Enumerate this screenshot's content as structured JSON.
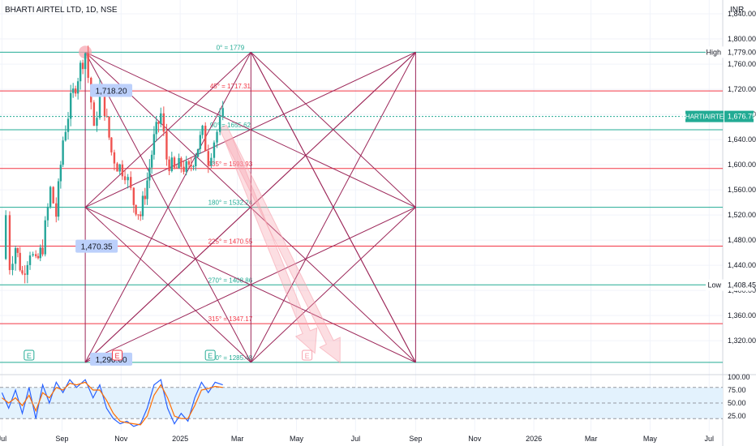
{
  "header": {
    "title": "BHARTI AIRTEL LTD, 1D, NSE",
    "currency": "INR"
  },
  "colors": {
    "up": "#26a69a",
    "down": "#ef5350",
    "fib_teal": "#22ab94",
    "fib_red": "#f23645",
    "gann": "#9c2759",
    "callout_bg": "#bcd0fb",
    "stoch_k": "#2962ff",
    "stoch_d": "#ff6d00",
    "band": "#e3f2fd",
    "arrow": "#f7a1ad",
    "price_tag": "#22ab94"
  },
  "chart_data": [
    {
      "type": "candlestick",
      "title": "BHARTI AIRTEL LTD, 1D, NSE",
      "ylim": [
        1266,
        1862
      ],
      "y_ticks": [
        {
          "v": 1320,
          "label": "1,320.00"
        },
        {
          "v": 1360,
          "label": "1,360.00"
        },
        {
          "v": 1400,
          "label": "1,400.00"
        },
        {
          "v": 1440,
          "label": "1,440.00"
        },
        {
          "v": 1480,
          "label": "1,480.00"
        },
        {
          "v": 1520,
          "label": "1,520.00"
        },
        {
          "v": 1560,
          "label": "1,560.00"
        },
        {
          "v": 1600,
          "label": "1,600.00"
        },
        {
          "v": 1640,
          "label": "1,640.00"
        },
        {
          "v": 1680,
          "label": "1,680.00"
        },
        {
          "v": 1720,
          "label": "1,720.00"
        },
        {
          "v": 1760,
          "label": "1,760.00"
        },
        {
          "v": 1800,
          "label": "1,800.00"
        },
        {
          "v": 1840,
          "label": "1,840.00"
        }
      ],
      "x_ticks": [
        {
          "date": "2024-07-01",
          "label": "Jul"
        },
        {
          "date": "2024-09-01",
          "label": "Sep"
        },
        {
          "date": "2024-11-01",
          "label": "Nov"
        },
        {
          "date": "2025-01-01",
          "label": "2025"
        },
        {
          "date": "2025-03-01",
          "label": "Mar"
        },
        {
          "date": "2025-05-01",
          "label": "May"
        },
        {
          "date": "2025-07-01",
          "label": "Jul"
        },
        {
          "date": "2025-09-01",
          "label": "Sep"
        },
        {
          "date": "2025-11-01",
          "label": "Nov"
        },
        {
          "date": "2026-01-01",
          "label": "2026"
        },
        {
          "date": "2026-03-01",
          "label": "Mar"
        },
        {
          "date": "2026-05-01",
          "label": "May"
        },
        {
          "date": "2026-07-01",
          "label": "Jul"
        }
      ],
      "price_path": [
        {
          "date": "2024-07-01",
          "close": 1450
        },
        {
          "date": "2024-07-05",
          "close": 1520
        },
        {
          "date": "2024-07-09",
          "close": 1440
        },
        {
          "date": "2024-07-15",
          "close": 1470
        },
        {
          "date": "2024-07-22",
          "close": 1425
        },
        {
          "date": "2024-07-30",
          "close": 1465
        },
        {
          "date": "2024-08-05",
          "close": 1440
        },
        {
          "date": "2024-08-12",
          "close": 1470
        },
        {
          "date": "2024-08-20",
          "close": 1560
        },
        {
          "date": "2024-08-26",
          "close": 1520
        },
        {
          "date": "2024-09-02",
          "close": 1640
        },
        {
          "date": "2024-09-10",
          "close": 1700
        },
        {
          "date": "2024-09-20",
          "close": 1755
        },
        {
          "date": "2024-09-25",
          "close": 1779
        },
        {
          "date": "2024-10-01",
          "close": 1700
        },
        {
          "date": "2024-10-04",
          "close": 1650
        },
        {
          "date": "2024-10-10",
          "close": 1720
        },
        {
          "date": "2024-10-15",
          "close": 1690
        },
        {
          "date": "2024-10-22",
          "close": 1620
        },
        {
          "date": "2024-10-28",
          "close": 1600
        },
        {
          "date": "2024-11-05",
          "close": 1590
        },
        {
          "date": "2024-11-14",
          "close": 1540
        },
        {
          "date": "2024-11-21",
          "close": 1520
        },
        {
          "date": "2024-11-28",
          "close": 1575
        },
        {
          "date": "2024-12-05",
          "close": 1640
        },
        {
          "date": "2024-12-12",
          "close": 1680
        },
        {
          "date": "2024-12-18",
          "close": 1610
        },
        {
          "date": "2024-12-26",
          "close": 1590
        },
        {
          "date": "2025-01-02",
          "close": 1600
        },
        {
          "date": "2025-01-10",
          "close": 1590
        },
        {
          "date": "2025-01-17",
          "close": 1620
        },
        {
          "date": "2025-01-24",
          "close": 1650
        },
        {
          "date": "2025-01-30",
          "close": 1610
        },
        {
          "date": "2025-02-05",
          "close": 1640
        },
        {
          "date": "2025-02-11",
          "close": 1665
        },
        {
          "date": "2025-02-14",
          "close": 1676.75
        }
      ],
      "last_price": {
        "label": "BHARTIAIRTEL",
        "value": 1676.75,
        "text": "1,676.75"
      },
      "high": {
        "label": "High",
        "value": 1779,
        "text": "1,779.00"
      },
      "low": {
        "label": "Low",
        "value": 1408.45,
        "text": "1,408.45"
      },
      "fib_levels": [
        {
          "angle": "0°",
          "value": 1779,
          "text": "0° = 1779",
          "color": "teal"
        },
        {
          "angle": "45°",
          "value": 1717.31,
          "text": "45° = 1717.31",
          "color": "red"
        },
        {
          "angle": "90°",
          "value": 1655.62,
          "text": "90° = 1655.62",
          "color": "teal"
        },
        {
          "angle": "135°",
          "value": 1593.93,
          "text": "135° = 1593.93",
          "color": "red"
        },
        {
          "angle": "180°",
          "value": 1532.24,
          "text": "180° = 1532.24",
          "color": "teal"
        },
        {
          "angle": "225°",
          "value": 1470.55,
          "text": "225° = 1470.55",
          "color": "red"
        },
        {
          "angle": "270°",
          "value": 1408.86,
          "text": "270° = 1408.86",
          "color": "teal"
        },
        {
          "angle": "315°",
          "value": 1347.17,
          "text": "315° = 1347.17",
          "color": "red"
        },
        {
          "angle": "360°",
          "value": 1285.48,
          "text": "360° = 1285.48",
          "color": "teal"
        }
      ],
      "callouts": [
        {
          "text": "1,718.20",
          "date": "2024-10-05",
          "value": 1718.2
        },
        {
          "text": "1,470.35",
          "date": "2024-09-20",
          "value": 1470.35
        },
        {
          "text": "1,290.60",
          "date": "2024-10-05",
          "value": 1290.6
        }
      ],
      "gann_box": {
        "start": "2024-09-25",
        "mid": "2025-03-15",
        "end": "2025-09-01",
        "top": 1779,
        "mid_price": 1532.24,
        "bottom": 1285.48
      },
      "earnings_markers": [
        {
          "date": "2024-07-29",
          "text": "E",
          "kind": "reported"
        },
        {
          "date": "2024-10-28",
          "text": "E",
          "kind": "missed"
        },
        {
          "date": "2025-02-01",
          "text": "E",
          "kind": "reported"
        },
        {
          "date": "2025-05-12",
          "text": "E",
          "kind": "upcoming"
        }
      ],
      "projection_arrows": [
        {
          "from_date": "2025-02-14",
          "from_value": 1660,
          "to_date": "2025-06-15",
          "to_value": 1285
        },
        {
          "from_date": "2025-02-20",
          "from_value": 1640,
          "to_date": "2025-05-20",
          "to_value": 1300
        }
      ]
    },
    {
      "type": "line",
      "title": "",
      "ylim": [
        0,
        100
      ],
      "y_ticks": [
        {
          "v": 100,
          "label": "100.00"
        },
        {
          "v": 75,
          "label": "75.00"
        },
        {
          "v": 50,
          "label": "50.00"
        },
        {
          "v": 25,
          "label": "25.00"
        }
      ],
      "bands": {
        "upper": 80,
        "middle": 50,
        "lower": 20
      },
      "series": [
        {
          "key": "k",
          "values": [
            [
              "2024-07-01",
              70
            ],
            [
              "2024-07-08",
              40
            ],
            [
              "2024-07-15",
              75
            ],
            [
              "2024-07-22",
              30
            ],
            [
              "2024-07-29",
              80
            ],
            [
              "2024-08-05",
              20
            ],
            [
              "2024-08-12",
              85
            ],
            [
              "2024-08-19",
              50
            ],
            [
              "2024-08-26",
              90
            ],
            [
              "2024-09-02",
              70
            ],
            [
              "2024-09-09",
              95
            ],
            [
              "2024-09-16",
              80
            ],
            [
              "2024-09-25",
              95
            ],
            [
              "2024-10-03",
              60
            ],
            [
              "2024-10-10",
              85
            ],
            [
              "2024-10-17",
              40
            ],
            [
              "2024-10-24",
              20
            ],
            [
              "2024-10-31",
              10
            ],
            [
              "2024-11-07",
              15
            ],
            [
              "2024-11-14",
              5
            ],
            [
              "2024-11-21",
              10
            ],
            [
              "2024-11-28",
              40
            ],
            [
              "2024-12-05",
              85
            ],
            [
              "2024-12-12",
              95
            ],
            [
              "2024-12-19",
              40
            ],
            [
              "2024-12-26",
              10
            ],
            [
              "2025-01-02",
              30
            ],
            [
              "2025-01-09",
              15
            ],
            [
              "2025-01-16",
              60
            ],
            [
              "2025-01-23",
              90
            ],
            [
              "2025-01-30",
              70
            ],
            [
              "2025-02-06",
              90
            ],
            [
              "2025-02-14",
              85
            ]
          ]
        },
        {
          "key": "d",
          "values": [
            [
              "2024-07-01",
              60
            ],
            [
              "2024-07-08",
              50
            ],
            [
              "2024-07-15",
              60
            ],
            [
              "2024-07-22",
              45
            ],
            [
              "2024-07-29",
              65
            ],
            [
              "2024-08-05",
              35
            ],
            [
              "2024-08-12",
              70
            ],
            [
              "2024-08-19",
              60
            ],
            [
              "2024-08-26",
              80
            ],
            [
              "2024-09-02",
              75
            ],
            [
              "2024-09-09",
              88
            ],
            [
              "2024-09-16",
              85
            ],
            [
              "2024-09-25",
              90
            ],
            [
              "2024-10-03",
              75
            ],
            [
              "2024-10-10",
              75
            ],
            [
              "2024-10-17",
              55
            ],
            [
              "2024-10-24",
              30
            ],
            [
              "2024-10-31",
              15
            ],
            [
              "2024-11-07",
              12
            ],
            [
              "2024-11-14",
              10
            ],
            [
              "2024-11-21",
              8
            ],
            [
              "2024-11-28",
              25
            ],
            [
              "2024-12-05",
              65
            ],
            [
              "2024-12-12",
              85
            ],
            [
              "2024-12-19",
              60
            ],
            [
              "2024-12-26",
              25
            ],
            [
              "2025-01-02",
              20
            ],
            [
              "2025-01-09",
              20
            ],
            [
              "2025-01-16",
              45
            ],
            [
              "2025-01-23",
              75
            ],
            [
              "2025-01-30",
              78
            ],
            [
              "2025-02-06",
              82
            ],
            [
              "2025-02-14",
              80
            ]
          ]
        }
      ]
    }
  ]
}
